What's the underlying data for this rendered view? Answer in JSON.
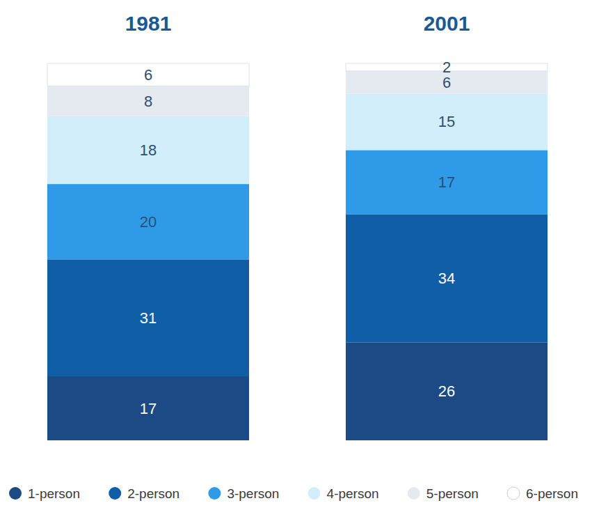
{
  "chart_data": {
    "type": "bar",
    "stacked": true,
    "data_labels": true,
    "tick_labels": "x",
    "legend": "bottom",
    "categories": [
      "1981",
      "2001"
    ],
    "ylim": [
      0,
      100
    ],
    "series": [
      {
        "name": "1-person",
        "color": "#1b4a85",
        "values": [
          17,
          26
        ]
      },
      {
        "name": "2-person",
        "color": "#105ea6",
        "values": [
          31,
          34
        ]
      },
      {
        "name": "3-person",
        "color": "#2f9be8",
        "values": [
          20,
          17
        ]
      },
      {
        "name": "4-person",
        "color": "#d3eefb",
        "values": [
          18,
          15
        ]
      },
      {
        "name": "5-person",
        "color": "#e5e9f0",
        "values": [
          8,
          6
        ]
      },
      {
        "name": "6-person",
        "color": "#ffffff",
        "values": [
          6,
          2
        ]
      }
    ]
  }
}
